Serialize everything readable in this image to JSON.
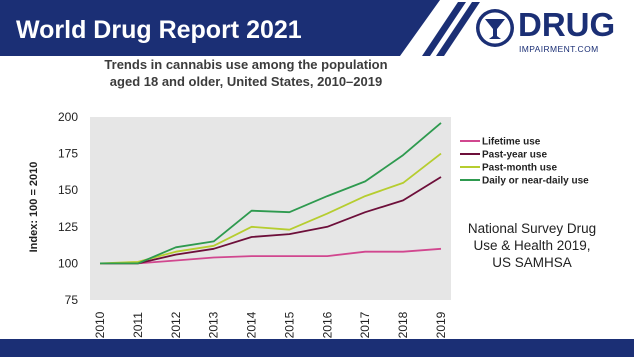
{
  "header": {
    "title": "World Drug Report 2021",
    "logo_main": "DRUG",
    "logo_sub": "IMPAIRMENT.COM"
  },
  "source_lines": [
    "National Survey Drug",
    "Use & Health 2019,",
    "US SAMHSA"
  ],
  "colors": {
    "header_blue": "#1b2f75",
    "plot_bg": "#e6e6e6"
  },
  "chart_data": {
    "type": "line",
    "title_lines": [
      "Trends in cannabis use among the population",
      "aged 18 and older, United States, 2010–2019"
    ],
    "ylabel": "Index: 100 = 2010",
    "xlabel": "",
    "ylim": [
      75,
      200
    ],
    "yticks": [
      75,
      100,
      125,
      150,
      175,
      200
    ],
    "x": [
      "2010",
      "2011",
      "2012",
      "2013",
      "2014",
      "2015",
      "2016",
      "2017",
      "2018",
      "2019"
    ],
    "grid": false,
    "legend": "right",
    "series": [
      {
        "name": "Lifetime use",
        "color": "#d1478f",
        "values": [
          100,
          100,
          102,
          104,
          105,
          105,
          105,
          108,
          108,
          110
        ]
      },
      {
        "name": "Past-year use",
        "color": "#6d0f3a",
        "values": [
          100,
          100,
          106,
          110,
          118,
          120,
          125,
          135,
          143,
          159
        ]
      },
      {
        "name": "Past-month use",
        "color": "#b6cd2f",
        "values": [
          100,
          101,
          108,
          112,
          125,
          123,
          134,
          146,
          155,
          175
        ]
      },
      {
        "name": "Daily or near-daily use",
        "color": "#2e9a4f",
        "values": [
          100,
          100,
          111,
          115,
          136,
          135,
          146,
          156,
          174,
          196
        ]
      }
    ]
  }
}
